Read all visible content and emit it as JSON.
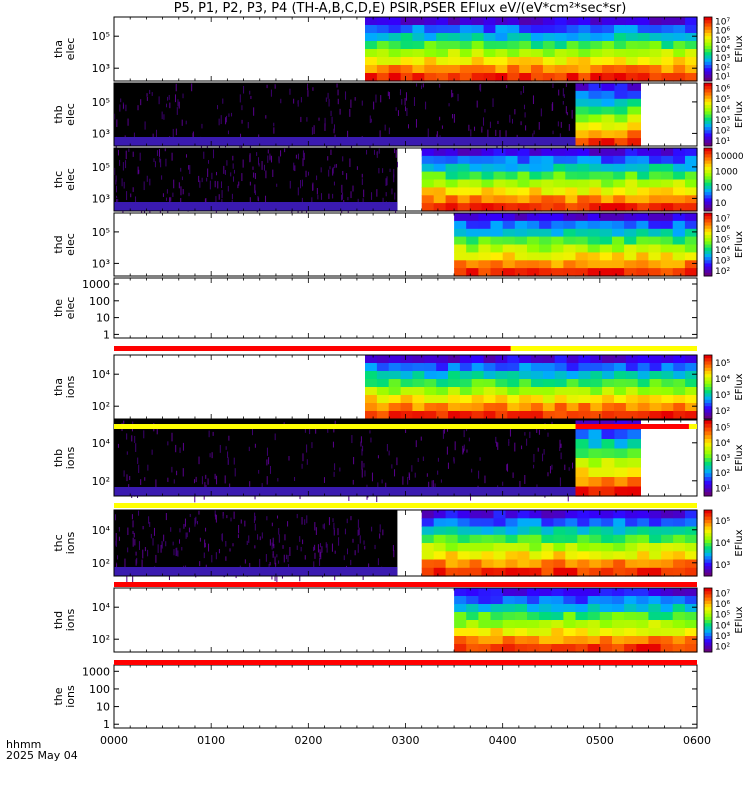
{
  "title": "P5, P1, P2, P3, P4 (TH-A,B,C,D,E) PSIR,PSER EFlux eV/(eV*cm²*sec*sr)",
  "footer": {
    "label": "hhmm",
    "date": "2025 May 04"
  },
  "colors": {
    "flag_red": "#ff0000",
    "flag_yellow": "#ffff00"
  },
  "chart_data": [
    {
      "type": "heatmap",
      "panel": "tha-elec",
      "ylabel": [
        "tha",
        "elec"
      ],
      "y_scale": "log",
      "yticks": [
        "10⁵",
        "10³"
      ],
      "cbar_ticks": [
        "10¹",
        "10²",
        "10³",
        "10⁴",
        "10⁵",
        "10⁶",
        "10⁷"
      ],
      "cbar_label": "EFlux",
      "data_start": "0235",
      "data_end": "0600",
      "flux_log10_range": [
        1,
        7
      ]
    },
    {
      "type": "heatmap",
      "panel": "thb-elec",
      "ylabel": [
        "thb",
        "elec"
      ],
      "y_scale": "log",
      "yticks": [
        "10⁵",
        "10³"
      ],
      "cbar_ticks": [
        "10¹",
        "10²",
        "10³",
        "10⁴",
        "10⁵",
        "10⁶"
      ],
      "cbar_label": "EFlux",
      "noise_start": "0000",
      "noise_end": "0445",
      "data_start": "0445",
      "data_end": "0485",
      "flux_log10_range": [
        1,
        6
      ]
    },
    {
      "type": "heatmap",
      "panel": "thc-elec",
      "ylabel": [
        "thc",
        "elec"
      ],
      "y_scale": "log",
      "yticks": [
        "10⁵",
        "10³"
      ],
      "cbar_ticks": [
        "10",
        "100",
        "1000",
        "10000"
      ],
      "cbar_label": "",
      "noise_start": "0000",
      "noise_end": "0255",
      "data_start": "0270",
      "data_end": "0600",
      "flux_log10_range": [
        0,
        5
      ]
    },
    {
      "type": "heatmap",
      "panel": "thd-elec",
      "ylabel": [
        "thd",
        "elec"
      ],
      "y_scale": "log",
      "yticks": [
        "10⁵",
        "10³"
      ],
      "cbar_ticks": [
        "10²",
        "10³",
        "10⁴",
        "10⁵",
        "10⁶",
        "10⁷"
      ],
      "cbar_label": "EFlux",
      "data_start": "0290",
      "data_end": "0600",
      "flux_log10_range": [
        2,
        7
      ]
    },
    {
      "type": "heatmap",
      "panel": "the-elec",
      "ylabel": [
        "the",
        "elec"
      ],
      "y_scale": "log",
      "yticks": [
        "1000",
        "100",
        "10",
        "1"
      ],
      "cbar_ticks": [],
      "cbar_label": "",
      "data_start": null,
      "data_end": null
    },
    {
      "type": "heatmap",
      "panel": "tha-ions",
      "ylabel": [
        "tha",
        "ions"
      ],
      "y_scale": "log",
      "yticks": [
        "10⁴",
        "10²"
      ],
      "cbar_ticks": [
        "10²",
        "10³",
        "10⁴",
        "10⁵"
      ],
      "cbar_label": "EFlux",
      "data_start": "0235",
      "data_end": "0600",
      "flux_log10_range": [
        2,
        5
      ]
    },
    {
      "type": "heatmap",
      "panel": "thb-ions",
      "ylabel": [
        "thb",
        "ions"
      ],
      "y_scale": "log",
      "yticks": [
        "10⁴",
        "10²"
      ],
      "cbar_ticks": [
        "10¹",
        "10²",
        "10³",
        "10⁴",
        "10⁵"
      ],
      "cbar_label": "EFlux",
      "noise_start": "0000",
      "noise_end": "0445",
      "data_start": "0445",
      "data_end": "0485",
      "flux_log10_range": [
        1,
        5
      ]
    },
    {
      "type": "heatmap",
      "panel": "thc-ions",
      "ylabel": [
        "thc",
        "ions"
      ],
      "y_scale": "log",
      "yticks": [
        "10⁴",
        "10²"
      ],
      "cbar_ticks": [
        "10³",
        "10⁴",
        "10⁵"
      ],
      "cbar_label": "EFlux",
      "noise_start": "0000",
      "noise_end": "0255",
      "data_start": "0270",
      "data_end": "0600",
      "flux_log10_range": [
        3,
        5
      ]
    },
    {
      "type": "heatmap",
      "panel": "thd-ions",
      "ylabel": [
        "thd",
        "ions"
      ],
      "y_scale": "log",
      "yticks": [
        "10⁴",
        "10²"
      ],
      "cbar_ticks": [
        "10²",
        "10³",
        "10⁴",
        "10⁵",
        "10⁶",
        "10⁷"
      ],
      "cbar_label": "EFlux",
      "data_start": "0290",
      "data_end": "0600",
      "flux_log10_range": [
        2,
        7
      ]
    },
    {
      "type": "heatmap",
      "panel": "the-ions",
      "ylabel": [
        "the",
        "ions"
      ],
      "y_scale": "log",
      "yticks": [
        "1000",
        "100",
        "10",
        "1"
      ],
      "cbar_ticks": [],
      "cbar_label": "",
      "data_start": null,
      "data_end": null
    }
  ],
  "flag_bars": [
    {
      "after": "the-elec",
      "segments": [
        {
          "start": "0000",
          "end": "0405",
          "color": "red"
        },
        {
          "start": "0405",
          "end": "0600",
          "color": "yellow"
        }
      ]
    },
    {
      "after": "tha-ions",
      "segments": [
        {
          "start": "0000",
          "end": "0600",
          "color": "yellow"
        },
        {
          "start": "0445",
          "end": "0555",
          "color": "red"
        }
      ]
    },
    {
      "after": "thb-ions",
      "segments": [
        {
          "start": "0000",
          "end": "0600",
          "color": "yellow"
        }
      ]
    },
    {
      "after": "thc-ions",
      "segments": [
        {
          "start": "0000",
          "end": "0600",
          "color": "red"
        }
      ]
    },
    {
      "after": "thd-ions",
      "segments": [
        {
          "start": "0000",
          "end": "0600",
          "color": "red"
        }
      ]
    }
  ],
  "x_axis": {
    "ticks": [
      "0000",
      "0100",
      "0200",
      "0300",
      "0400",
      "0500",
      "0600"
    ],
    "range": [
      "0000",
      "0600"
    ]
  }
}
